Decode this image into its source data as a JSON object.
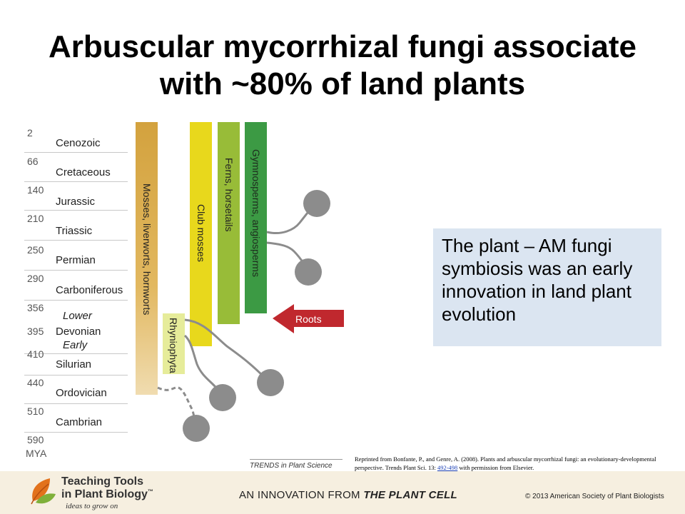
{
  "title": {
    "line1": "Arbuscular mycorrhizal fungi associate",
    "line2": "with ~80% of land plants"
  },
  "timeline": {
    "unit": "MYA",
    "eras": [
      {
        "mya": "2",
        "name": "Cenozoic"
      },
      {
        "mya": "66",
        "name": "Cretaceous"
      },
      {
        "mya": "140",
        "name": "Jurassic"
      },
      {
        "mya": "210",
        "name": "Triassic"
      },
      {
        "mya": "250",
        "name": "Permian"
      },
      {
        "mya": "290",
        "name": "Carboniferous"
      },
      {
        "mya": "356",
        "name": "Devonian"
      },
      {
        "mya": "395",
        "name": ""
      },
      {
        "mya": "410",
        "name": "Silurian"
      },
      {
        "mya": "440",
        "name": "Ordovician"
      },
      {
        "mya": "510",
        "name": "Cambrian"
      },
      {
        "mya": "590",
        "name": ""
      }
    ],
    "devonian_sub": {
      "lower": "Lower",
      "early": "Early"
    }
  },
  "lineages": {
    "mosses": "Mosses, liverworts, hornworts",
    "rhyniophyta": "Rhyniophyta",
    "club_mosses": "Club mosses",
    "ferns": "Ferns, horsetails",
    "gymnosperms": "Gymnosperms, angiosperms"
  },
  "roots_label": "Roots",
  "colors": {
    "mosses": "#d9a640",
    "rhyniophyta": "#e6ec9a",
    "club_mosses": "#e8d81c",
    "ferns": "#98bc38",
    "gymnosperms": "#3c9a44",
    "roots_arrow": "#c0282e",
    "fungi": "#8c8c8c",
    "infobox": "#dbe5f1"
  },
  "infobox": {
    "text": "The plant – AM fungi symbiosis was an early innovation in land plant evolution"
  },
  "source_label": "TRENDS in Plant Science",
  "credit": {
    "text": "Reprinted from Bonfante, P., and Genre, A. (2008). Plants and arbuscular mycorrhizal fungi: an evolutionary-developmental perspective. Trends Plant Sci. 13: ",
    "link": "492-498",
    "suffix": " with permission from Elsevier."
  },
  "footer": {
    "logo_line1": "Teaching Tools",
    "logo_line2": "in Plant Biology",
    "logo_tm": "™",
    "tagline": "ideas to grow on",
    "innovation_prefix": "AN INNOVATION FROM ",
    "innovation_source": "THE PLANT CELL",
    "copyright": "© 2013 American Society of Plant Biologists"
  }
}
